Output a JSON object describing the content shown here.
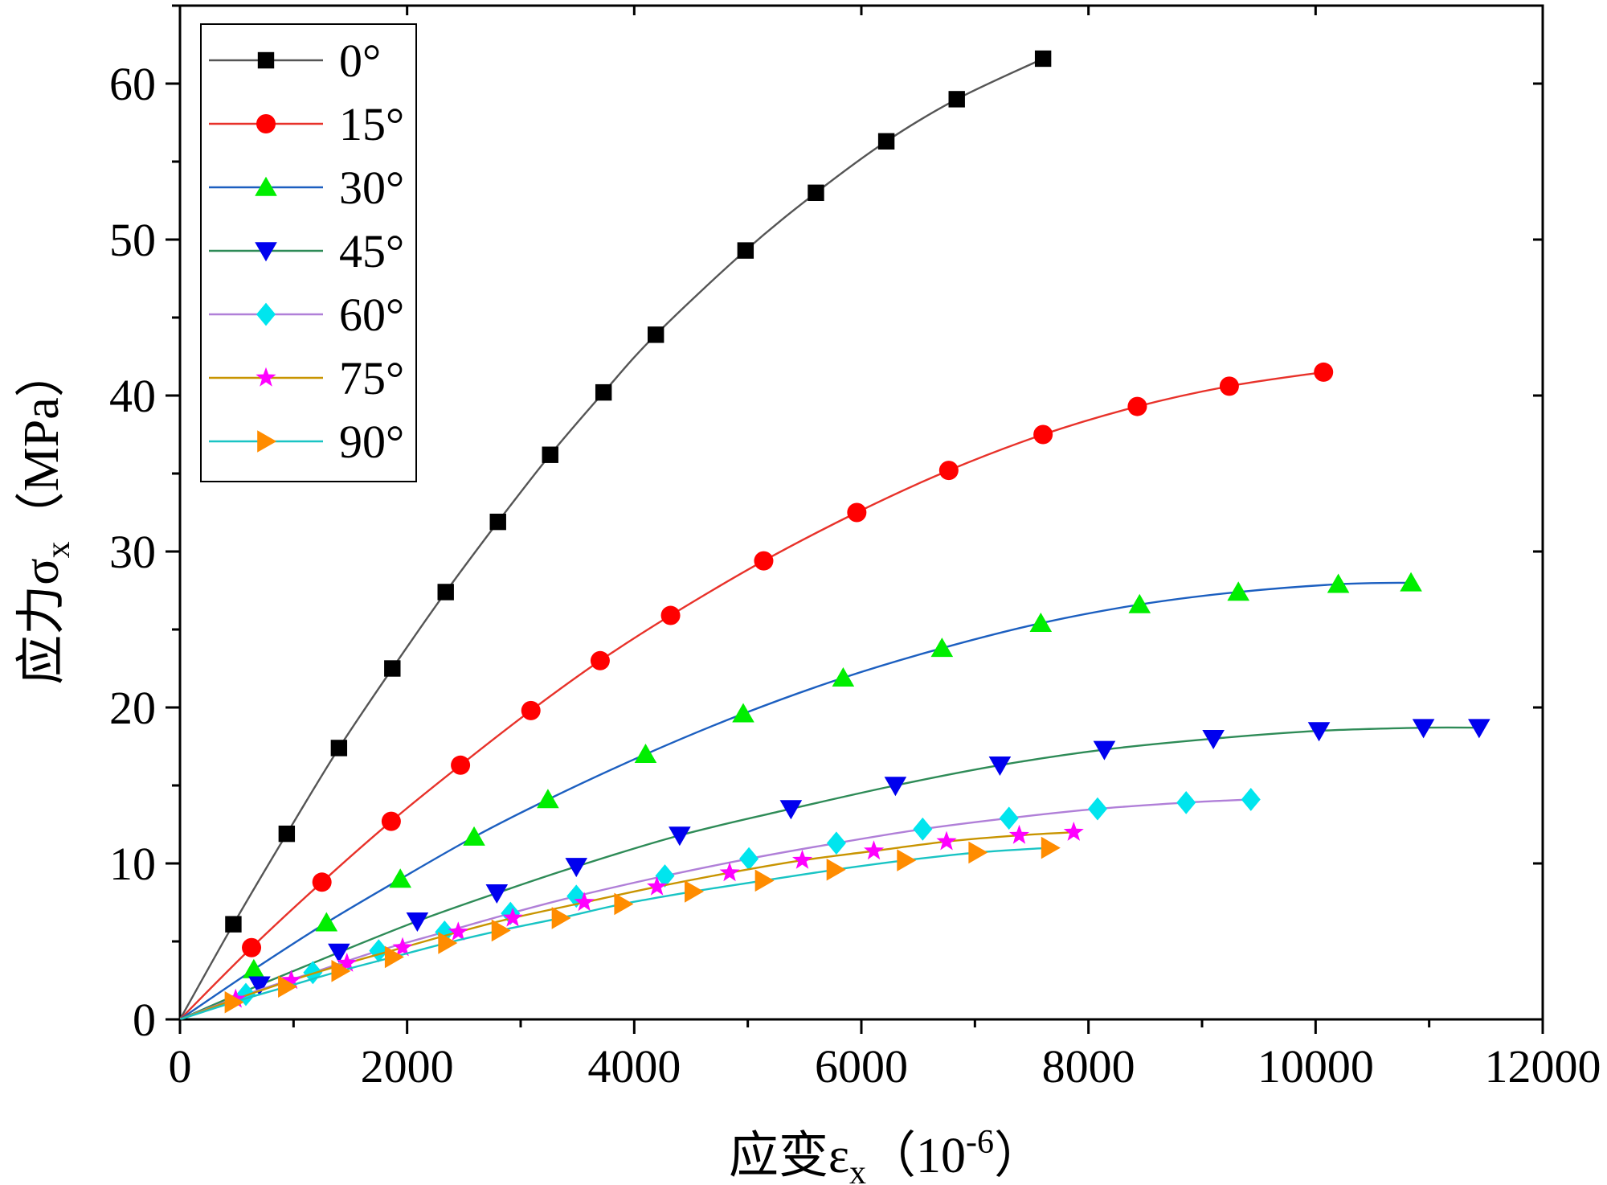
{
  "chart_data": {
    "type": "line",
    "title": "",
    "xlabel": "应变εx（10-6）",
    "xlabel_parts": {
      "prefix": "应变ε",
      "sub": "x",
      "paren_open": "（10",
      "sup": "-6",
      "paren_close": "）"
    },
    "ylabel": "应力σx（MPa）",
    "ylabel_parts": {
      "prefix": "应力σ",
      "sub": "x",
      "paren": "（MPa）"
    },
    "xlim": [
      0,
      12000
    ],
    "ylim": [
      0,
      65
    ],
    "xticks": [
      0,
      2000,
      4000,
      6000,
      8000,
      10000,
      12000
    ],
    "xtick_labels": [
      "0",
      "2000",
      "4000",
      "6000",
      "8000",
      "10000",
      "12000"
    ],
    "yticks": [
      0,
      10,
      20,
      30,
      40,
      50,
      60
    ],
    "ytick_labels": [
      "0",
      "10",
      "20",
      "30",
      "40",
      "50",
      "60"
    ],
    "grid": false,
    "legend_position": "top-left",
    "series": [
      {
        "name": "0°",
        "line_color": "#555555",
        "marker_color": "#000000",
        "marker": "square",
        "x": [
          0,
          470,
          940,
          1400,
          1870,
          2340,
          2800,
          3260,
          3730,
          4190,
          4980,
          5600,
          6220,
          6840,
          7600
        ],
        "y": [
          0,
          6.1,
          11.9,
          17.4,
          22.5,
          27.4,
          31.9,
          36.2,
          40.2,
          43.9,
          49.3,
          53.0,
          56.3,
          59.0,
          61.6
        ]
      },
      {
        "name": "15°",
        "line_color": "#e8322a",
        "marker_color": "#ff0000",
        "marker": "circle",
        "x": [
          0,
          630,
          1250,
          1860,
          2470,
          3090,
          3700,
          4320,
          5140,
          5960,
          6770,
          7600,
          8430,
          9240,
          10070
        ],
        "y": [
          0,
          4.6,
          8.8,
          12.7,
          16.3,
          19.8,
          23.0,
          25.9,
          29.4,
          32.5,
          35.2,
          37.5,
          39.3,
          40.6,
          41.5
        ]
      },
      {
        "name": "30°",
        "line_color": "#1c5fc0",
        "marker_color": "#00ee00",
        "marker": "triangle-up",
        "x": [
          0,
          650,
          1290,
          1940,
          2590,
          3240,
          4100,
          4960,
          5840,
          6710,
          7580,
          8450,
          9320,
          10200,
          10840
        ],
        "y": [
          0,
          3.2,
          6.2,
          9.0,
          11.7,
          14.1,
          17.0,
          19.6,
          21.9,
          23.8,
          25.4,
          26.6,
          27.4,
          27.9,
          28.0
        ]
      },
      {
        "name": "45°",
        "line_color": "#2e8b57",
        "marker_color": "#0000ee",
        "marker": "triangle-down",
        "x": [
          0,
          700,
          1400,
          2090,
          2790,
          3490,
          4400,
          5380,
          6300,
          7220,
          8140,
          9100,
          10030,
          10950,
          11440
        ],
        "y": [
          0,
          2.2,
          4.3,
          6.3,
          8.1,
          9.8,
          11.8,
          13.5,
          15.0,
          16.3,
          17.3,
          18.0,
          18.5,
          18.7,
          18.7
        ]
      },
      {
        "name": "60°",
        "line_color": "#b07fd8",
        "marker_color": "#00e5ee",
        "marker": "diamond",
        "x": [
          0,
          580,
          1170,
          1750,
          2330,
          2910,
          3490,
          4270,
          5010,
          5780,
          6540,
          7300,
          8080,
          8860,
          9430
        ],
        "y": [
          0,
          1.6,
          3.0,
          4.4,
          5.6,
          6.8,
          7.9,
          9.2,
          10.3,
          11.3,
          12.2,
          12.9,
          13.5,
          13.9,
          14.1
        ]
      },
      {
        "name": "75°",
        "line_color": "#c89400",
        "marker_color": "#ff00ff",
        "marker": "star",
        "x": [
          0,
          490,
          980,
          1470,
          1960,
          2450,
          2930,
          3560,
          4200,
          4840,
          5480,
          6110,
          6750,
          7390,
          7870
        ],
        "y": [
          0,
          1.3,
          2.5,
          3.6,
          4.6,
          5.6,
          6.5,
          7.5,
          8.5,
          9.4,
          10.2,
          10.8,
          11.4,
          11.8,
          12.0
        ]
      },
      {
        "name": "90°",
        "line_color": "#19c4c4",
        "marker_color": "#ff8c00",
        "marker": "triangle-right",
        "x": [
          0,
          470,
          940,
          1410,
          1880,
          2350,
          2820,
          3350,
          3900,
          4520,
          5140,
          5770,
          6390,
          7020,
          7660
        ],
        "y": [
          0,
          1.1,
          2.1,
          3.1,
          4.0,
          4.9,
          5.7,
          6.5,
          7.4,
          8.2,
          8.9,
          9.6,
          10.2,
          10.7,
          11.0
        ]
      }
    ]
  }
}
